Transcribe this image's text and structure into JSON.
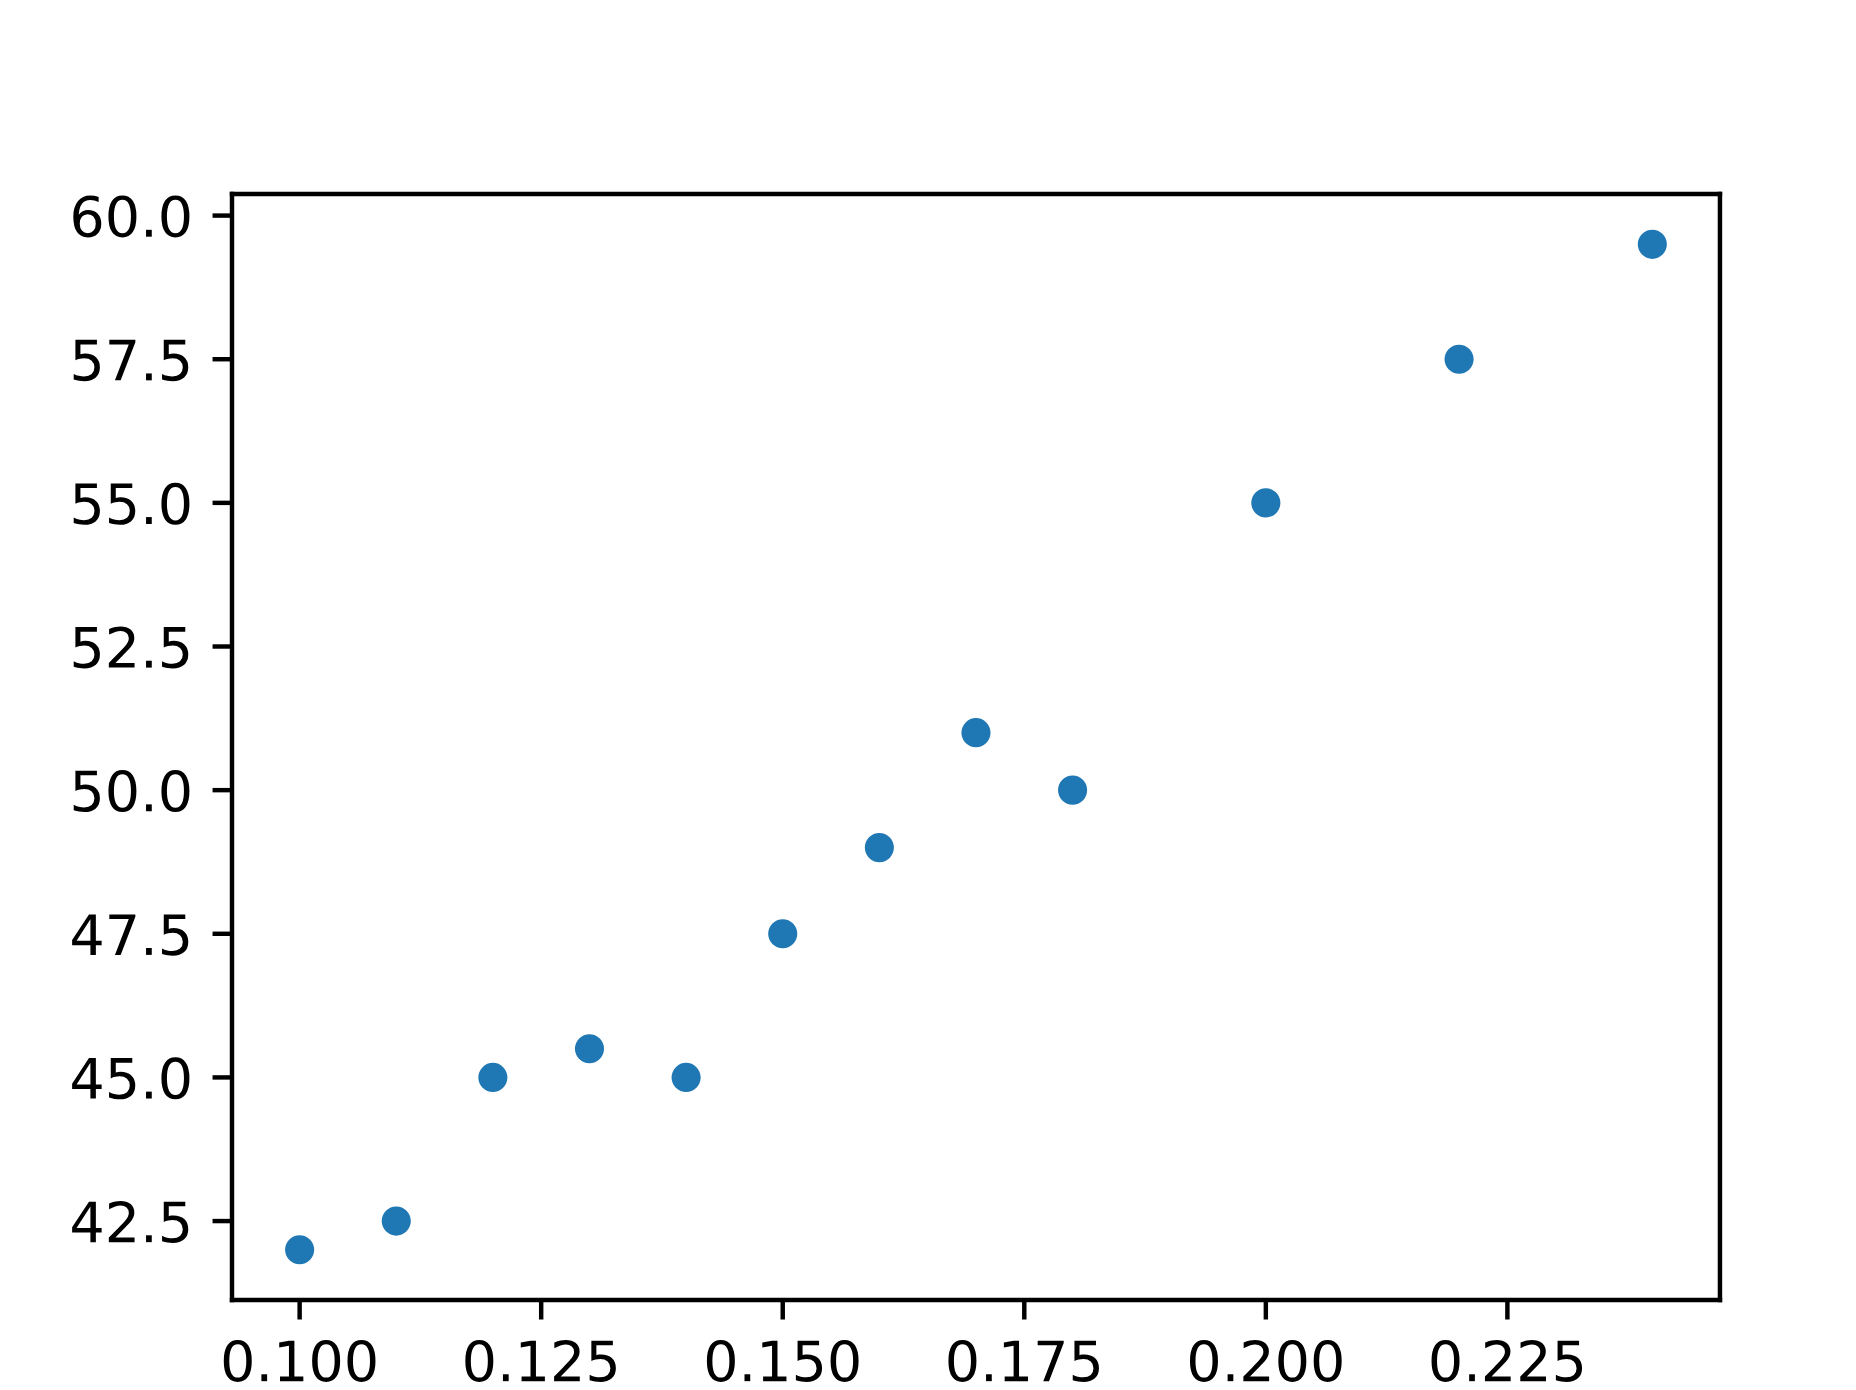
{
  "chart_data": {
    "type": "scatter",
    "x": [
      0.1,
      0.11,
      0.12,
      0.13,
      0.14,
      0.15,
      0.16,
      0.17,
      0.18,
      0.2,
      0.22,
      0.24
    ],
    "values": [
      42.0,
      42.5,
      45.0,
      45.5,
      45.0,
      47.5,
      49.0,
      51.0,
      50.0,
      55.0,
      57.5,
      59.5
    ],
    "color": "#1f77b4",
    "marker": "circle",
    "grid": false,
    "xlim": [
      0.093,
      0.247
    ],
    "xticks": [
      {
        "value": 0.1,
        "label": "0.100"
      },
      {
        "value": 0.125,
        "label": "0.125"
      },
      {
        "value": 0.15,
        "label": "0.150"
      },
      {
        "value": 0.175,
        "label": "0.175"
      },
      {
        "value": 0.2,
        "label": "0.200"
      },
      {
        "value": 0.225,
        "label": "0.225"
      }
    ],
    "ylim": [
      41.125,
      60.375
    ],
    "yticks": [
      {
        "value": 42.5,
        "label": "42.5"
      },
      {
        "value": 45,
        "label": "45.0"
      },
      {
        "value": 47.5,
        "label": "47.5"
      },
      {
        "value": 50,
        "label": "50.0"
      },
      {
        "value": 52.5,
        "label": "52.5"
      },
      {
        "value": 55,
        "label": "55.0"
      },
      {
        "value": 57.5,
        "label": "57.5"
      },
      {
        "value": 60,
        "label": "60.0"
      }
    ]
  }
}
